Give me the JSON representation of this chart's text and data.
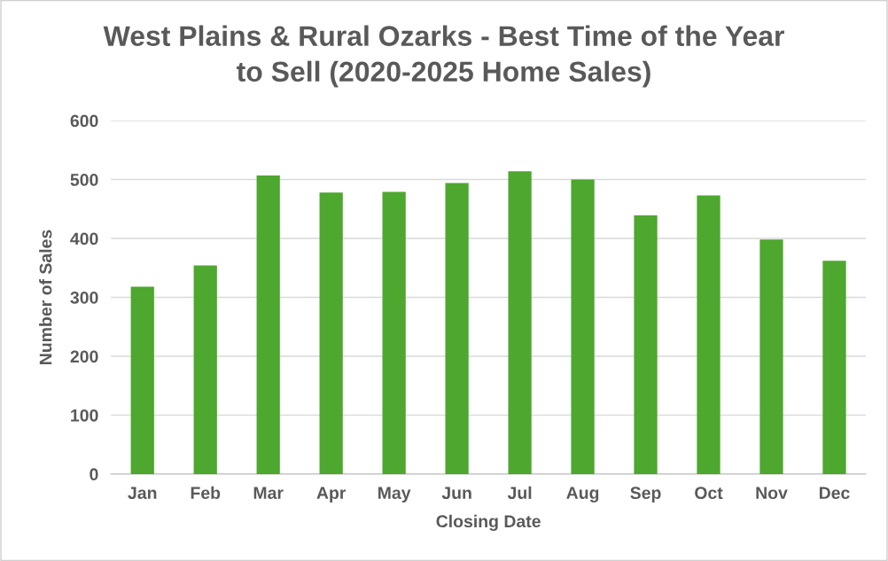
{
  "chart_data": {
    "type": "bar",
    "title": "West Plains & Rural Ozarks - Best Time of the Year\nto Sell (2020-2025 Home Sales)",
    "xlabel": "Closing Date",
    "ylabel": "Number of Sales",
    "categories": [
      "Jan",
      "Feb",
      "Mar",
      "Apr",
      "May",
      "Jun",
      "Jul",
      "Aug",
      "Sep",
      "Oct",
      "Nov",
      "Dec"
    ],
    "values": [
      318,
      354,
      507,
      478,
      479,
      494,
      514,
      500,
      439,
      473,
      398,
      362
    ],
    "color": "#4ea72e",
    "ylim": [
      0,
      600
    ],
    "yticks": [
      0,
      100,
      200,
      300,
      400,
      500,
      600
    ],
    "grid": "y",
    "legend": false
  }
}
